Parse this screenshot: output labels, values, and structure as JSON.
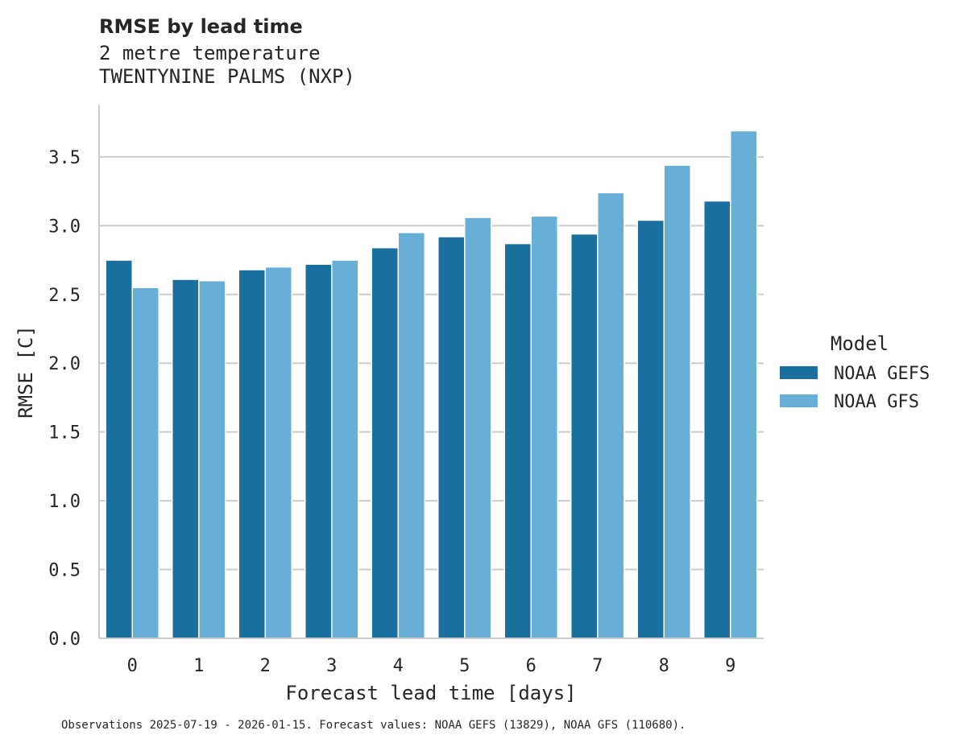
{
  "chart_data": {
    "type": "bar",
    "title": "RMSE by lead time",
    "subtitle": [
      "2 metre temperature",
      "TWENTYNINE PALMS (NXP)"
    ],
    "xlabel": "Forecast lead time [days]",
    "ylabel": "RMSE [C]",
    "categories": [
      "0",
      "1",
      "2",
      "3",
      "4",
      "5",
      "6",
      "7",
      "8",
      "9"
    ],
    "ylim": [
      0,
      3.88
    ],
    "yticks": [
      0.0,
      0.5,
      1.0,
      1.5,
      2.0,
      2.5,
      3.0,
      3.5
    ],
    "ytick_labels": [
      "0.0",
      "0.5",
      "1.0",
      "1.5",
      "2.0",
      "2.5",
      "3.0",
      "3.5"
    ],
    "grid": "horizontal",
    "legend": {
      "title": "Model",
      "placement": "right"
    },
    "series": [
      {
        "name": "NOAA GEFS",
        "color": "#1a6f9f",
        "values": [
          2.75,
          2.61,
          2.68,
          2.72,
          2.84,
          2.92,
          2.87,
          2.94,
          3.04,
          3.18
        ]
      },
      {
        "name": "NOAA GFS",
        "color": "#67afd7",
        "values": [
          2.55,
          2.6,
          2.7,
          2.75,
          2.95,
          3.06,
          3.07,
          3.24,
          3.44,
          3.69
        ]
      }
    ],
    "footnote": "Observations 2025-07-19 - 2026-01-15. Forecast values: NOAA GEFS (13829), NOAA GFS (110680)."
  }
}
